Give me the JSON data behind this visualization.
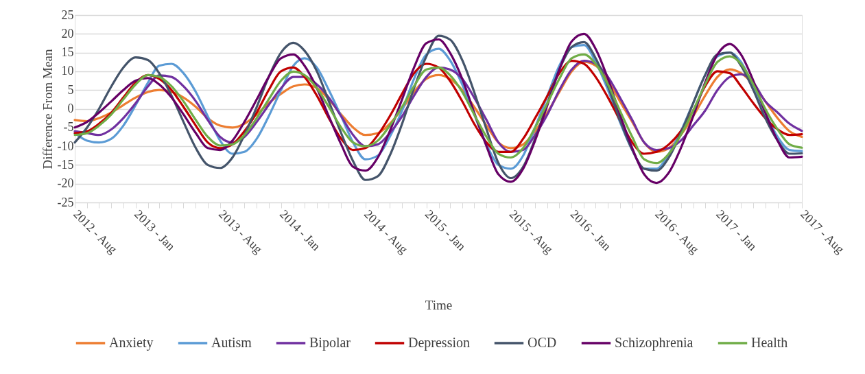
{
  "chart_data": {
    "type": "line",
    "xlabel": "Time",
    "ylabel": "Difference From Mean",
    "x": [
      "2012-08",
      "2012-09",
      "2012-10",
      "2012-11",
      "2012-12",
      "2013-01",
      "2013-02",
      "2013-03",
      "2013-04",
      "2013-05",
      "2013-06",
      "2013-07",
      "2013-08",
      "2013-09",
      "2013-10",
      "2013-11",
      "2013-12",
      "2014-01",
      "2014-02",
      "2014-03",
      "2014-04",
      "2014-05",
      "2014-06",
      "2014-07",
      "2014-08",
      "2014-09",
      "2014-10",
      "2014-11",
      "2014-12",
      "2015-01",
      "2015-02",
      "2015-03",
      "2015-04",
      "2015-05",
      "2015-06",
      "2015-07",
      "2015-08",
      "2015-09",
      "2015-10",
      "2015-11",
      "2015-12",
      "2016-01",
      "2016-02",
      "2016-03",
      "2016-04",
      "2016-05",
      "2016-06",
      "2016-07",
      "2016-08",
      "2016-09",
      "2016-10",
      "2016-11",
      "2016-12",
      "2017-01",
      "2017-02",
      "2017-03",
      "2017-04",
      "2017-05",
      "2017-06",
      "2017-07",
      "2017-08"
    ],
    "series": [
      {
        "name": "Anxiety",
        "color": "#ed7d31",
        "values": [
          -3,
          -3.3,
          -2.5,
          -1,
          1,
          3,
          4.5,
          5,
          4.5,
          3,
          0.5,
          -2.5,
          -4.5,
          -5,
          -4,
          -1.5,
          1.5,
          4,
          6,
          6.5,
          5.5,
          2.5,
          -1.5,
          -5,
          -7,
          -6.5,
          -4,
          0,
          4.5,
          8,
          9,
          8,
          5,
          0.5,
          -4.5,
          -9,
          -10.5,
          -9.5,
          -6,
          -1,
          4.5,
          10,
          12.5,
          11.5,
          7.5,
          2,
          -3.5,
          -9,
          -11.5,
          -10.5,
          -7,
          -2,
          3.5,
          8.5,
          10.5,
          9.5,
          6.5,
          2,
          -2.5,
          -6,
          -7.5
        ]
      },
      {
        "name": "Autism",
        "color": "#5b9bd5",
        "values": [
          -6.5,
          -8.5,
          -9,
          -8,
          -4.5,
          1,
          7,
          11.5,
          12,
          9.5,
          4.5,
          -2,
          -8.5,
          -12,
          -11.5,
          -8,
          -2,
          5,
          11.5,
          13.5,
          11,
          5,
          -2,
          -9,
          -13.5,
          -12.5,
          -7.5,
          -0.5,
          8,
          14.5,
          16,
          13,
          6.5,
          -1.5,
          -9.5,
          -15,
          -16,
          -12.5,
          -5,
          3.5,
          11.5,
          16.5,
          17,
          12.5,
          5,
          -3.5,
          -11,
          -16,
          -16,
          -12,
          -6,
          1.5,
          9,
          14,
          15,
          12.5,
          6,
          -1,
          -7.5,
          -11,
          -11.3
        ]
      },
      {
        "name": "Bipolar",
        "color": "#7030a0",
        "values": [
          -6,
          -6.5,
          -7,
          -5.5,
          -2.5,
          1.5,
          6,
          8.9,
          8.5,
          6,
          2,
          -3,
          -7.5,
          -9,
          -7.5,
          -3.5,
          1,
          5.5,
          8.5,
          8.5,
          6.5,
          3,
          -2,
          -7,
          -10,
          -9.5,
          -6.5,
          -2,
          3.5,
          8.5,
          11,
          10.5,
          8,
          3,
          -3,
          -9,
          -11.5,
          -11,
          -7,
          -1.5,
          5,
          10.5,
          12.8,
          12,
          8.5,
          3,
          -3,
          -9,
          -11,
          -10.5,
          -8.5,
          -4.5,
          -0.5,
          5,
          8.5,
          9.2,
          7,
          2,
          -1,
          -4,
          -5.9
        ]
      },
      {
        "name": "Depression",
        "color": "#c00000",
        "values": [
          -6.5,
          -6,
          -4,
          -1,
          3,
          7,
          9,
          8,
          5,
          0.5,
          -4.5,
          -9,
          -10.5,
          -9.5,
          -6,
          -1,
          5,
          10,
          11,
          8.5,
          3.5,
          -2.5,
          -8,
          -11,
          -10.5,
          -7,
          -2,
          4,
          9.5,
          12,
          11,
          7.5,
          2,
          -4,
          -9,
          -11.5,
          -11.5,
          -8,
          -2.5,
          3.5,
          9.5,
          12.8,
          12,
          8.5,
          3,
          -3,
          -9,
          -12,
          -11.5,
          -9.5,
          -6,
          -0.5,
          6,
          10,
          9.5,
          6,
          1.5,
          -2.5,
          -5.5,
          -7,
          -6.8
        ]
      },
      {
        "name": "OCD",
        "color": "#44546a",
        "values": [
          -9,
          -5,
          0,
          6,
          11,
          13.7,
          13,
          9.5,
          3.5,
          -3.5,
          -10.5,
          -15,
          -15.8,
          -13,
          -7,
          0.5,
          8.5,
          15,
          17.6,
          15.5,
          10,
          2,
          -6.5,
          -14,
          -19,
          -18,
          -12.5,
          -4,
          5.5,
          14,
          19.5,
          18.5,
          13,
          4.5,
          -5.5,
          -14.5,
          -18.5,
          -15.5,
          -8,
          1.5,
          10.5,
          16.5,
          17.8,
          13.5,
          6,
          -3,
          -11,
          -16,
          -16.5,
          -13,
          -6.5,
          1.5,
          9,
          14.5,
          15,
          11.5,
          5,
          -2.5,
          -8.5,
          -12,
          -11.9
        ]
      },
      {
        "name": "Schizophrenia",
        "color": "#660066",
        "values": [
          -5,
          -3.5,
          -1,
          2,
          5,
          7.5,
          8.2,
          6.5,
          3,
          -1.5,
          -6.5,
          -10.5,
          -11,
          -8.5,
          -3.5,
          2.5,
          8.5,
          13.5,
          14.5,
          11.5,
          5.5,
          -2,
          -9.5,
          -15.5,
          -16.5,
          -13,
          -6,
          2.5,
          11,
          17.5,
          18.5,
          15,
          8,
          -1,
          -10,
          -17.5,
          -19.5,
          -16,
          -8.5,
          1,
          10.5,
          18,
          20,
          16,
          8,
          -1.5,
          -10.5,
          -17.5,
          -19.8,
          -17,
          -10.5,
          -2,
          7,
          14.5,
          17.3,
          14.5,
          7.5,
          -1,
          -8.5,
          -13,
          -12.8
        ]
      },
      {
        "name": "Health",
        "color": "#70ad47",
        "values": [
          -7,
          -6.5,
          -4.5,
          -1.5,
          2.5,
          6.5,
          9,
          8.5,
          6,
          2,
          -3,
          -7.5,
          -9.8,
          -9.5,
          -7,
          -2.5,
          2.5,
          7.5,
          9.9,
          9,
          5.5,
          0.5,
          -5,
          -9,
          -10,
          -8.5,
          -4.5,
          0.5,
          6,
          10.5,
          11,
          9,
          4.5,
          -1.5,
          -7.5,
          -12,
          -13,
          -10.5,
          -5,
          1.5,
          8,
          13.5,
          14.5,
          12,
          6.5,
          -0.5,
          -7.5,
          -13.5,
          -14.5,
          -12,
          -7,
          -0.5,
          6.5,
          12.5,
          14,
          12,
          6.5,
          0,
          -5.5,
          -9.5,
          -10.4
        ]
      }
    ],
    "xlim": [
      "2012-08",
      "2017-08"
    ],
    "xticks": [
      {
        "value": "2012-08",
        "label": "2012 - Aug"
      },
      {
        "value": "2012-09",
        "label": null
      },
      {
        "value": "2012-10",
        "label": null
      },
      {
        "value": "2012-11",
        "label": null
      },
      {
        "value": "2012-12",
        "label": null
      },
      {
        "value": "2013-01",
        "label": "2013 - Jan"
      },
      {
        "value": "2013-02",
        "label": null
      },
      {
        "value": "2013-03",
        "label": null
      },
      {
        "value": "2013-04",
        "label": null
      },
      {
        "value": "2013-05",
        "label": null
      },
      {
        "value": "2013-06",
        "label": null
      },
      {
        "value": "2013-07",
        "label": null
      },
      {
        "value": "2013-08",
        "label": "2013 - Aug"
      },
      {
        "value": "2013-09",
        "label": null
      },
      {
        "value": "2013-10",
        "label": null
      },
      {
        "value": "2013-11",
        "label": null
      },
      {
        "value": "2013-12",
        "label": null
      },
      {
        "value": "2014-01",
        "label": "2014 - Jan"
      },
      {
        "value": "2014-02",
        "label": null
      },
      {
        "value": "2014-03",
        "label": null
      },
      {
        "value": "2014-04",
        "label": null
      },
      {
        "value": "2014-05",
        "label": null
      },
      {
        "value": "2014-06",
        "label": null
      },
      {
        "value": "2014-07",
        "label": null
      },
      {
        "value": "2014-08",
        "label": "2014 - Aug"
      },
      {
        "value": "2014-09",
        "label": null
      },
      {
        "value": "2014-10",
        "label": null
      },
      {
        "value": "2014-11",
        "label": null
      },
      {
        "value": "2014-12",
        "label": null
      },
      {
        "value": "2015-01",
        "label": "2015 - Jan"
      },
      {
        "value": "2015-02",
        "label": null
      },
      {
        "value": "2015-03",
        "label": null
      },
      {
        "value": "2015-04",
        "label": null
      },
      {
        "value": "2015-05",
        "label": null
      },
      {
        "value": "2015-06",
        "label": null
      },
      {
        "value": "2015-07",
        "label": null
      },
      {
        "value": "2015-08",
        "label": "2015 - Aug"
      },
      {
        "value": "2015-09",
        "label": null
      },
      {
        "value": "2015-10",
        "label": null
      },
      {
        "value": "2015-11",
        "label": null
      },
      {
        "value": "2015-12",
        "label": null
      },
      {
        "value": "2016-01",
        "label": "2016 - Jan"
      },
      {
        "value": "2016-02",
        "label": null
      },
      {
        "value": "2016-03",
        "label": null
      },
      {
        "value": "2016-04",
        "label": null
      },
      {
        "value": "2016-05",
        "label": null
      },
      {
        "value": "2016-06",
        "label": null
      },
      {
        "value": "2016-07",
        "label": null
      },
      {
        "value": "2016-08",
        "label": "2016 - Aug"
      },
      {
        "value": "2016-09",
        "label": null
      },
      {
        "value": "2016-10",
        "label": null
      },
      {
        "value": "2016-11",
        "label": null
      },
      {
        "value": "2016-12",
        "label": null
      },
      {
        "value": "2017-01",
        "label": "2017 - Jan"
      },
      {
        "value": "2017-02",
        "label": null
      },
      {
        "value": "2017-03",
        "label": null
      },
      {
        "value": "2017-04",
        "label": null
      },
      {
        "value": "2017-05",
        "label": null
      },
      {
        "value": "2017-06",
        "label": null
      },
      {
        "value": "2017-07",
        "label": null
      },
      {
        "value": "2017-08",
        "label": "2017 - Aug"
      }
    ],
    "ylim": [
      -25,
      25
    ],
    "yticks": [
      -25,
      -20,
      -15,
      -10,
      -5,
      0,
      5,
      10,
      15,
      20,
      25
    ],
    "grid": "y",
    "legend": "bottom",
    "marker": "none",
    "line_style": "solid"
  }
}
